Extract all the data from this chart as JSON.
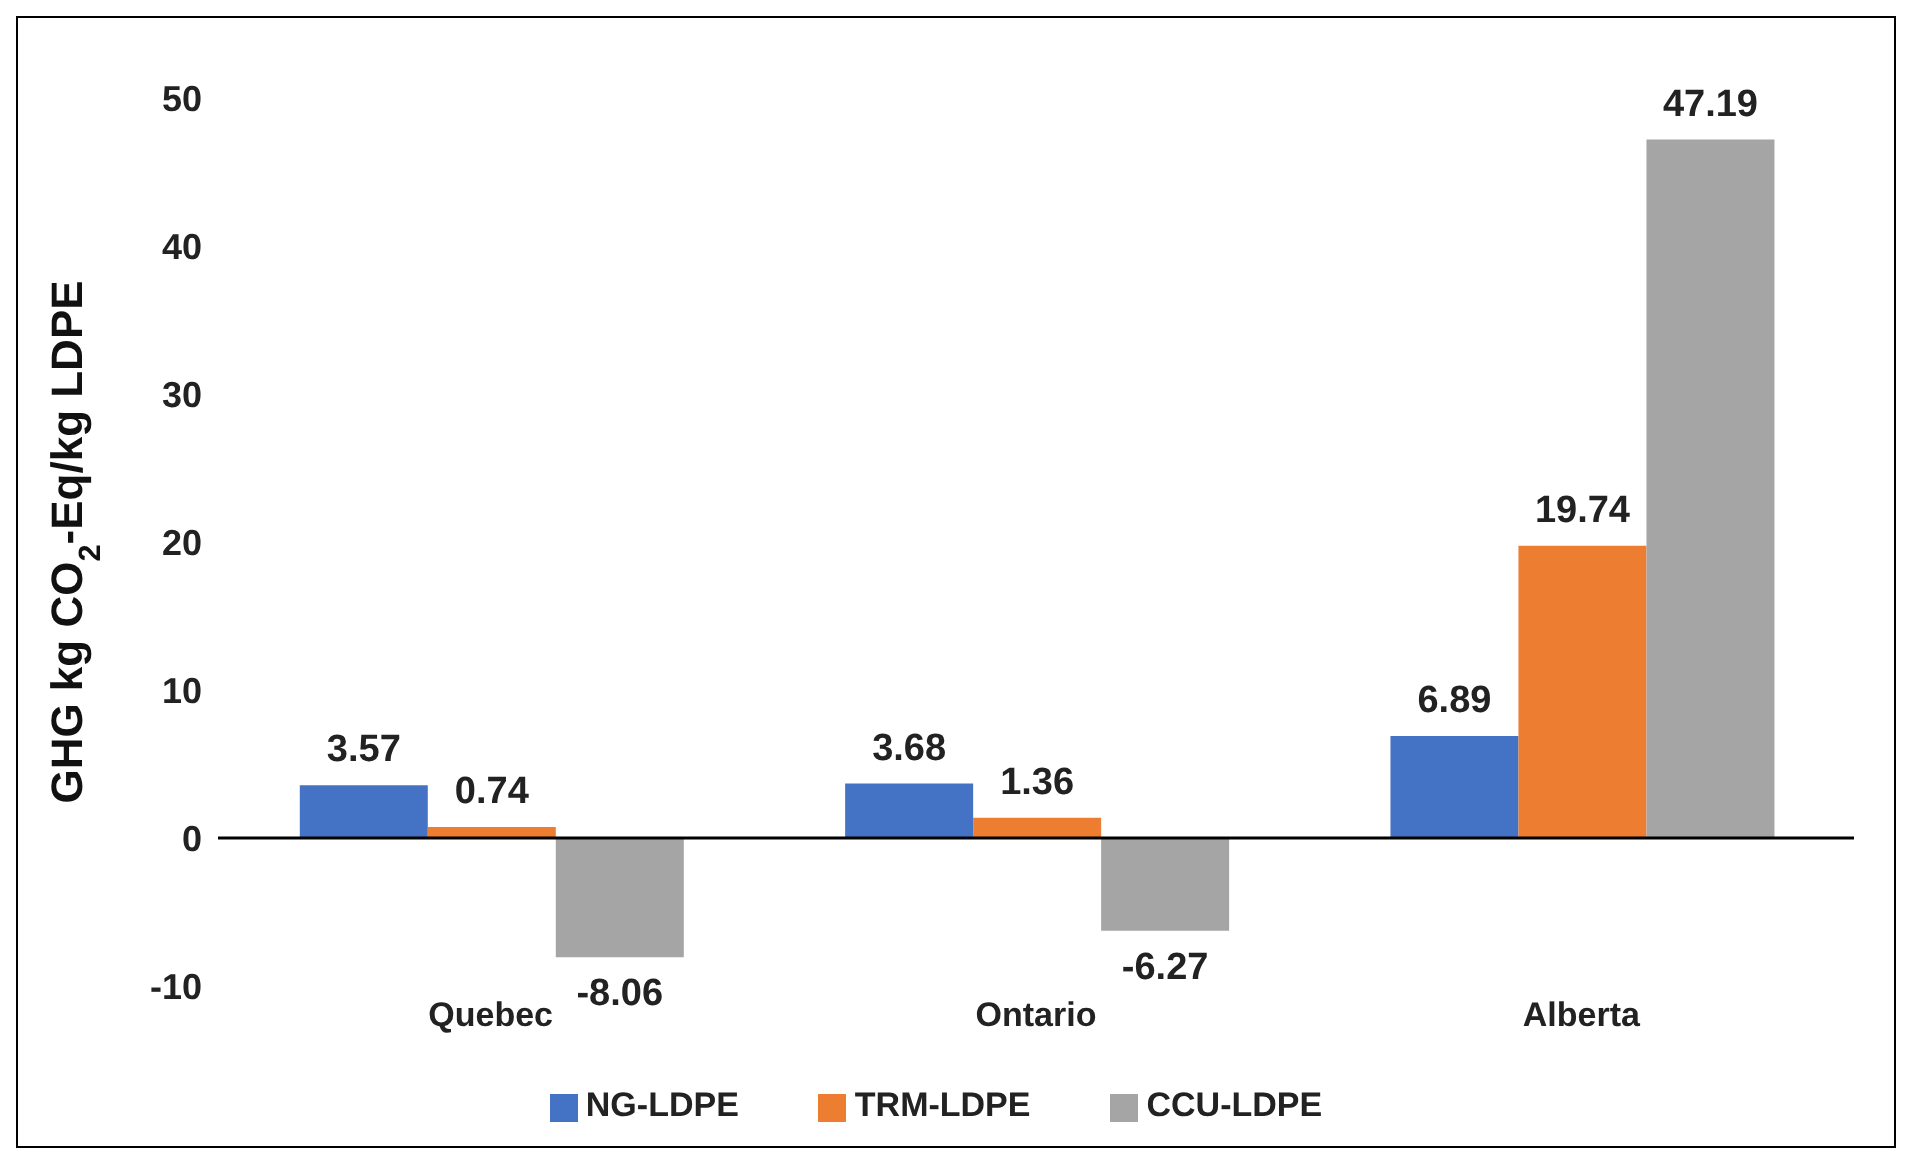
{
  "chart_data": {
    "type": "bar",
    "ylabel": "GHG kg CO$_{2}$-Eq/kg LDPE",
    "categories": [
      "Quebec",
      "Ontario",
      "Alberta"
    ],
    "series": [
      {
        "name": "NG-LDPE",
        "color": "#4472c4",
        "values": [
          3.57,
          3.68,
          6.89
        ]
      },
      {
        "name": "TRM-LDPE",
        "color": "#ed7d31",
        "values": [
          0.74,
          1.36,
          19.74
        ]
      },
      {
        "name": "CCU-LDPE",
        "color": "#a5a5a5",
        "values": [
          -8.06,
          -6.27,
          47.19
        ]
      }
    ],
    "ylim": [
      -10,
      50
    ],
    "yticks": [
      -10,
      0,
      10,
      20,
      30,
      40,
      50
    ],
    "data_labels": true,
    "legend": "bottom"
  }
}
